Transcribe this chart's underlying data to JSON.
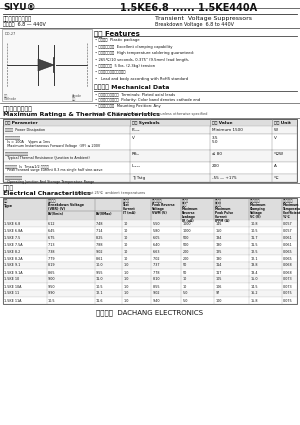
{
  "title_left": "SIYU®",
  "title_product": "1.5KE6.8 ...... 1.5KE440A",
  "subtitle_cn": "稳流电压抑制二极管",
  "subtitle_en": "Transient  Voltage Suppressors",
  "subtitle2_cn": "析断电压  6.8 — 440V",
  "subtitle2_en": "Breakdown Voltage  6.8 to 440V",
  "features_title": "特性 Features",
  "features": [
    "封装形式  Plastic package",
    "良好的隐断能力  Excellent clamping capability",
    "高温度锁锡保证  High temperature soldering guaranteed:",
    "265℃/10 seconds, 0.375\" (9.5mm) lead length,",
    "引线拉力保证  5 lbs. (2.3kg) tension",
    "引线和封装体符合环保标准",
    "  Lead and body according with RoHS standard"
  ],
  "mech_title": "机械数据 Mechanical Data",
  "mech_items": [
    "端子：門锒鈀入引线  Terminals: Plated axial leads",
    "极性：带色环为阴极  Polarity: Color band denotes cathode end",
    "安装位置：任意  Mounting Position: Any"
  ],
  "ratings_title_cn": "极限值和温度特性",
  "ratings_subtitle": "TA = 25℃  除非另有说明。",
  "ratings_title_en": "Maximum Ratings & Thermal Characteristics",
  "ratings_note": "Ratings at 25℃ ambient temperature unless otherwise specified",
  "ratings_headers": [
    "参数 Parameter",
    "符号 Symbols",
    "数值 Value",
    "单位 Unit"
  ],
  "ratings_rows": [
    [
      "功耗散消  Power Dissipation",
      "Pₘₐₓ",
      "Minimum 1500",
      "W"
    ],
    [
      "最大瞬时正向电压\n  Is = 100A    Vppm ≥ 1ms\n  Maximum Instantaneous Forward Voltage  (VF) ≤ 200V",
      "Vⁱ",
      "3.5\n5.0",
      "V"
    ],
    [
      "典型热阻抵（结局到环境）\n  Typical Thermal Resistance (Junction to Ambient)",
      "Rθₗₐ",
      "≤ 80",
      "℃/W"
    ],
    [
      "峰唃正向电流  Is  7ms≤1/2 正弦脱离\n  Peak forward surge current 8.3 ms single half sine-wave",
      "Iₘₐₓₐ",
      "200",
      "A"
    ],
    [
      "工作结棆和存储温度\n  Operating Junction And Storage Temperature Range",
      "Tj Tstg",
      "-55 — +175",
      "℃"
    ]
  ],
  "elec_title_cn": "电属性",
  "elec_subtitle": "TA = 25℃  除非另有说明。",
  "elec_title_en": "Electrical Characteristics",
  "elec_note": "Ratings at 25℃  ambient temperatures",
  "elec_col_headers_cn": [
    "型号",
    "析断电压",
    "测试电流",
    "最小峓峰电压",
    "最大反向\n满电流",
    "最大峓峰\n脉冲电流",
    "最大限制电压",
    "最大温度系数"
  ],
  "elec_col_headers_en": [
    "Type",
    "Breakdown Voltage\n(VBR) (V)",
    "Test  Current",
    "Peak Reverse\nVoltage",
    "Maximum\nReverse Leakage",
    "Maximum Peak\nPulse Current",
    "Maximum\nClamping Voltage",
    "Maximum\nTemperature\nCoefficient"
  ],
  "elec_col_headers_sym": [
    "",
    "BV(Vmin)  BV(VMax)",
    "IT (mA)",
    "VWM (V)",
    "IR (uA)",
    "IPPM (A)",
    "VC (V)",
    "%/℃"
  ],
  "elec_rows": [
    [
      "1.5KE 6.8",
      "6.12",
      "7.48",
      "10",
      "5.50",
      "1000",
      "145",
      "10.8",
      "0.057"
    ],
    [
      "1.5KE 6.8A",
      "6.45",
      "7.14",
      "10",
      "5.80",
      "1000",
      "150",
      "10.5",
      "0.057"
    ],
    [
      "1.5KE 7.5",
      "6.75",
      "8.25",
      "10",
      "6.05",
      "500",
      "134",
      "11.7",
      "0.061"
    ],
    [
      "1.5KE 7.5A",
      "7.13",
      "7.88",
      "10",
      "6.40",
      "500",
      "130",
      "11.5",
      "0.061"
    ],
    [
      "1.5KE 8.2",
      "7.38",
      "9.02",
      "10",
      "6.63",
      "200",
      "125",
      "12.5",
      "0.065"
    ],
    [
      "1.5KE 8.2A",
      "7.79",
      "8.61",
      "10",
      "7.02",
      "200",
      "130",
      "12.1",
      "0.065"
    ],
    [
      "1.5KE 9.1",
      "8.19",
      "10.0",
      "1.0",
      "7.37",
      "50",
      "114",
      "13.8",
      "0.068"
    ],
    [
      "1.5KE 9.1A",
      "8.65",
      "9.55",
      "1.0",
      "7.78",
      "50",
      "117",
      "13.4",
      "0.068"
    ],
    [
      "1.5KE 10",
      "9.00",
      "11.0",
      "1.0",
      "8.10",
      "10",
      "105",
      "15.0",
      "0.073"
    ],
    [
      "1.5KE 10A",
      "9.50",
      "10.5",
      "1.0",
      "8.55",
      "10",
      "106",
      "14.5",
      "0.073"
    ],
    [
      "1.5KE 11",
      "9.90",
      "12.1",
      "1.0",
      "9.02",
      "5.0",
      "97",
      "16.2",
      "0.075"
    ],
    [
      "1.5KE 11A",
      "10.5",
      "11.6",
      "1.0",
      "9.40",
      "5.0",
      "100",
      "15.8",
      "0.075"
    ]
  ],
  "footer": "大昌电子  DACHANG ELECTRONICS",
  "bg_color": "#ffffff"
}
